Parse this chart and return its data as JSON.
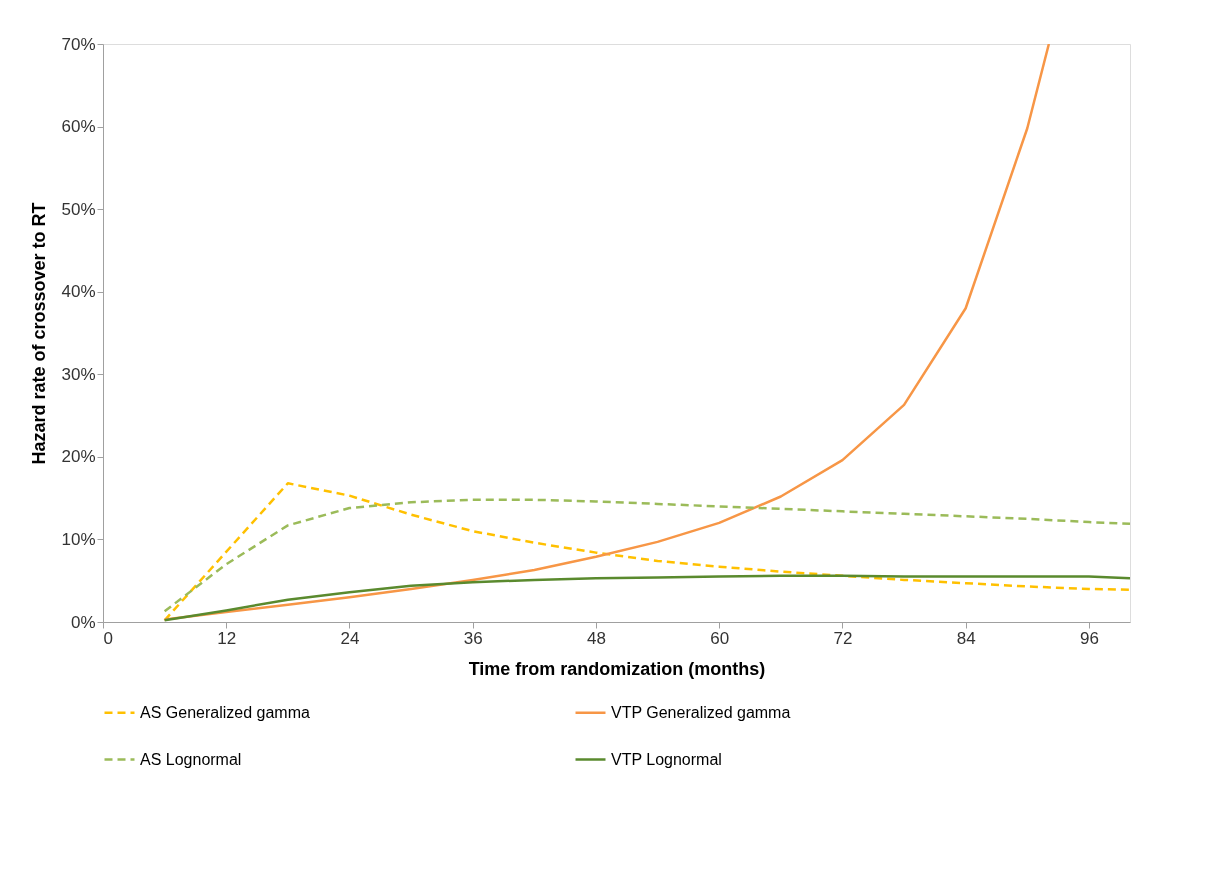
{
  "chart_data": {
    "type": "line",
    "xlabel": "Time from randomization  (months)",
    "ylabel": "Hazard rate of crossover to RT",
    "xlim": [
      0,
      100
    ],
    "xticks": [
      0,
      12,
      24,
      36,
      48,
      60,
      72,
      84,
      96
    ],
    "ylim": [
      0,
      70
    ],
    "yticks": [
      {
        "value": 0,
        "label": "0%"
      },
      {
        "value": 10,
        "label": "10%"
      },
      {
        "value": 20,
        "label": "20%"
      },
      {
        "value": 30,
        "label": "30%"
      },
      {
        "value": 40,
        "label": "40%"
      },
      {
        "value": 50,
        "label": "50%"
      },
      {
        "value": 60,
        "label": "60%"
      },
      {
        "value": 70,
        "label": "70%"
      }
    ],
    "grid": false,
    "legend": "bottom",
    "marker": "none",
    "series": [
      {
        "name": "AS Generalized gamma",
        "color": "#ffc000",
        "line_style": "dashed",
        "x": [
          6,
          18,
          24,
          30,
          36,
          42,
          48,
          54,
          60,
          66,
          72,
          78,
          84,
          90,
          96,
          100
        ],
        "values": [
          0.2,
          16.8,
          15.3,
          13.0,
          11.0,
          9.6,
          8.4,
          7.4,
          6.7,
          6.1,
          5.6,
          5.1,
          4.7,
          4.3,
          4.0,
          3.9
        ]
      },
      {
        "name": "VTP Generalized gamma",
        "color": "#f79646",
        "line_style": "solid",
        "x": [
          6,
          12,
          18,
          24,
          30,
          36,
          42,
          48,
          54,
          60,
          66,
          72,
          78,
          84,
          90,
          92.1
        ],
        "values": [
          0.3,
          1.2,
          2.1,
          3.0,
          4.0,
          5.1,
          6.3,
          7.9,
          9.7,
          12.0,
          15.2,
          19.6,
          26.3,
          38,
          59.8,
          70
        ]
      },
      {
        "name": "AS Lognormal",
        "color": "#9bbb59",
        "line_style": "dashed",
        "x": [
          6,
          12,
          18,
          24,
          30,
          36,
          42,
          48,
          54,
          60,
          66,
          72,
          78,
          84,
          90,
          96,
          100
        ],
        "values": [
          1.3,
          7.0,
          11.7,
          13.8,
          14.5,
          14.8,
          14.8,
          14.6,
          14.3,
          14.0,
          13.7,
          13.4,
          13.1,
          12.8,
          12.5,
          12.1,
          11.9
        ]
      },
      {
        "name": "VTP Lognormal",
        "color": "#5a8a2e",
        "line_style": "solid",
        "x": [
          6,
          12,
          18,
          24,
          30,
          36,
          42,
          48,
          54,
          60,
          66,
          72,
          78,
          84,
          90,
          96,
          100
        ],
        "values": [
          0.2,
          1.4,
          2.7,
          3.6,
          4.4,
          4.8,
          5.1,
          5.3,
          5.4,
          5.5,
          5.6,
          5.6,
          5.5,
          5.5,
          5.5,
          5.5,
          5.3
        ]
      }
    ]
  }
}
